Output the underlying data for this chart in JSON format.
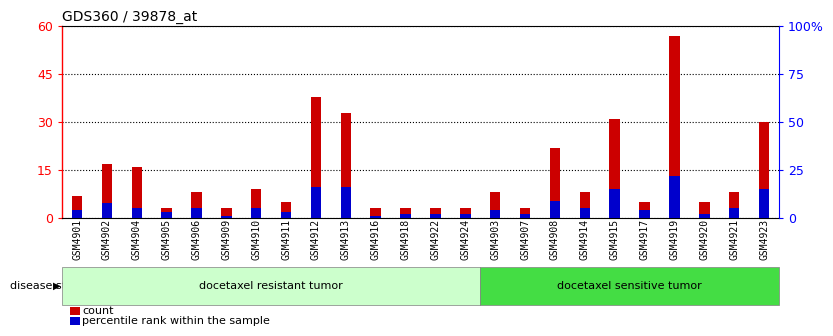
{
  "title": "GDS360 / 39878_at",
  "samples": [
    "GSM4901",
    "GSM4902",
    "GSM4904",
    "GSM4905",
    "GSM4906",
    "GSM4909",
    "GSM4910",
    "GSM4911",
    "GSM4912",
    "GSM4913",
    "GSM4916",
    "GSM4918",
    "GSM4922",
    "GSM4924",
    "GSM4903",
    "GSM4907",
    "GSM4908",
    "GSM4914",
    "GSM4915",
    "GSM4917",
    "GSM4919",
    "GSM4920",
    "GSM4921",
    "GSM4923"
  ],
  "counts": [
    7,
    17,
    16,
    3,
    8,
    3,
    9,
    5,
    38,
    33,
    3,
    3,
    3,
    3,
    8,
    3,
    22,
    8,
    31,
    5,
    57,
    5,
    8,
    30
  ],
  "percentile_ranks": [
    4,
    8,
    5,
    3,
    5,
    1,
    5,
    3,
    16,
    16,
    1,
    2,
    2,
    2,
    4,
    2,
    9,
    5,
    15,
    4,
    22,
    2,
    5,
    15
  ],
  "group1_label": "docetaxel resistant tumor",
  "group2_label": "docetaxel sensitive tumor",
  "group1_count": 14,
  "group2_count": 10,
  "ylim_left": [
    0,
    60
  ],
  "ylim_right": [
    0,
    100
  ],
  "yticks_left": [
    0,
    15,
    30,
    45,
    60
  ],
  "yticks_right": [
    0,
    25,
    50,
    75,
    100
  ],
  "yticklabels_right": [
    "0",
    "25",
    "50",
    "75",
    "100%"
  ],
  "bar_color": "#cc0000",
  "percentile_color": "#0000cc",
  "bar_width": 0.35,
  "blue_bar_width": 0.35,
  "group1_bg": "#ccffcc",
  "group2_bg": "#44dd44",
  "disease_state_label": "disease state",
  "legend_count_label": "count",
  "legend_percentile_label": "percentile rank within the sample",
  "title_fontsize": 10,
  "tick_label_fontsize": 7,
  "left_axis_color": "red",
  "right_axis_color": "blue"
}
